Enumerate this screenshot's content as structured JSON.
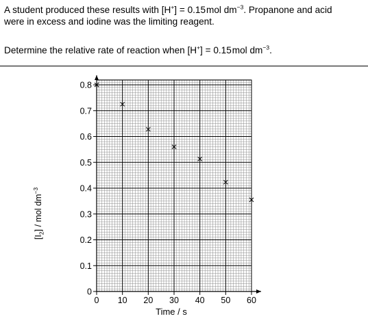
{
  "question": {
    "line1_a": "A student produced these results with [H",
    "line1_sup1": "+",
    "line1_b": "] = 0.15",
    "line1_unit": "mol",
    "line1_c": "dm",
    "line1_sup2": "−3",
    "line1_d": ".  Propanone and acid",
    "line2": "were in excess and iodine was the limiting reagent.",
    "line3_a": "Determine the relative rate of reaction when [H",
    "line3_sup1": "+",
    "line3_b": "] = 0.15",
    "line3_unit": "mol",
    "line3_c": "dm",
    "line3_sup2": "−3",
    "line3_d": "."
  },
  "chart_data": {
    "type": "scatter",
    "xlabel": "Time / s",
    "ylabel_pre": "[I",
    "ylabel_sub": "2",
    "ylabel_post": "] / mol dm",
    "ylabel_sup": "−3",
    "xlim": [
      0,
      60
    ],
    "ylim": [
      0,
      0.8
    ],
    "x_ticks": [
      "0",
      "10",
      "20",
      "30",
      "40",
      "50",
      "60"
    ],
    "y_ticks": [
      "0",
      "0.1",
      "0.2",
      "0.3",
      "0.4",
      "0.5",
      "0.6",
      "0.7",
      "0.8"
    ],
    "grid": true,
    "marker": "cross",
    "points": [
      {
        "x": 0,
        "y": 0.8
      },
      {
        "x": 10,
        "y": 0.725
      },
      {
        "x": 20,
        "y": 0.628
      },
      {
        "x": 30,
        "y": 0.56
      },
      {
        "x": 40,
        "y": 0.513
      },
      {
        "x": 50,
        "y": 0.423
      },
      {
        "x": 60,
        "y": 0.355
      }
    ]
  }
}
